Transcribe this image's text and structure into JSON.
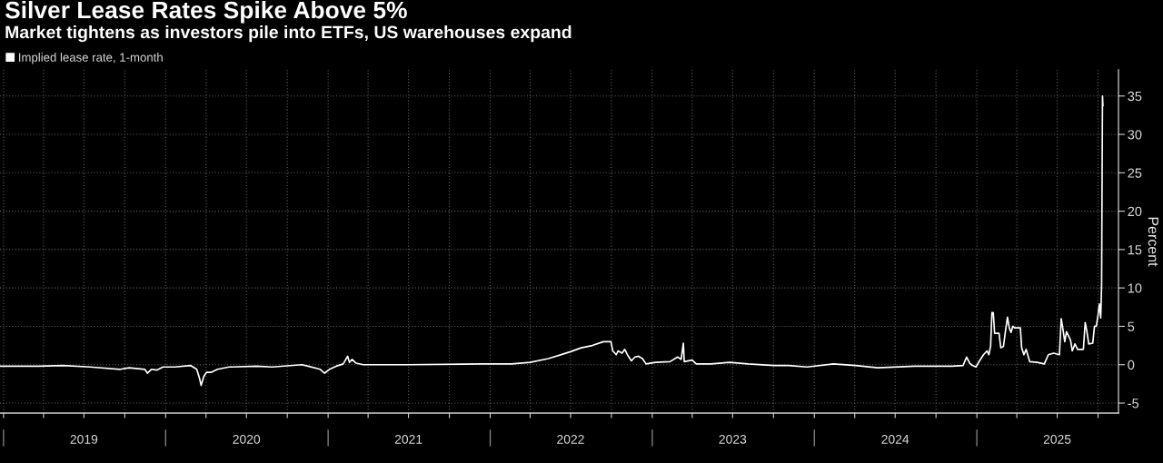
{
  "chart_data": {
    "type": "line",
    "title": "Silver Lease Rates Spike Above 5%",
    "subtitle": "Market tightens as investors pile into ETFs, US warehouses expand",
    "ylabel": "Percent",
    "x": [
      "2018-12-24",
      "2019-03-21",
      "2019-05-15",
      "2019-07-15",
      "2019-09-21",
      "2019-10-11",
      "2019-11-15",
      "2019-11-21",
      "2019-11-30",
      "2019-12-12",
      "2019-12-26",
      "2020-01-22",
      "2020-02-26",
      "2020-03-11",
      "2020-03-17",
      "2020-03-21",
      "2020-03-27",
      "2020-04-02",
      "2020-04-12",
      "2020-04-27",
      "2020-05-23",
      "2020-07-24",
      "2020-08-28",
      "2020-11-03",
      "2020-11-17",
      "2020-12-14",
      "2020-12-24",
      "2021-01-04",
      "2021-01-19",
      "2021-02-04",
      "2021-02-14",
      "2021-02-18",
      "2021-02-24",
      "2021-03-05",
      "2021-03-21",
      "2021-05-01",
      "2021-06-29",
      "2021-12-13",
      "2022-02-18",
      "2022-04-01",
      "2022-05-12",
      "2022-06-15",
      "2022-07-01",
      "2022-07-25",
      "2022-08-19",
      "2022-09-13",
      "2022-09-30",
      "2022-10-04",
      "2022-10-12",
      "2022-10-16",
      "2022-10-25",
      "2022-10-31",
      "2022-11-06",
      "2022-11-15",
      "2022-11-23",
      "2022-12-01",
      "2022-12-10",
      "2022-12-18",
      "2023-01-08",
      "2023-02-10",
      "2023-02-27",
      "2023-03-07",
      "2023-03-12",
      "2023-03-14",
      "2023-04-01",
      "2023-04-10",
      "2023-05-13",
      "2023-06-24",
      "2023-08-05",
      "2023-10-02",
      "2023-11-04",
      "2023-12-16",
      "2024-02-13",
      "2024-04-03",
      "2024-05-23",
      "2024-08-14",
      "2024-11-06",
      "2024-12-01",
      "2024-12-09",
      "2024-12-16",
      "2024-12-22",
      "2024-12-30",
      "2025-01-07",
      "2025-01-16",
      "2025-01-24",
      "2025-01-28",
      "2025-02-01",
      "2025-02-04",
      "2025-02-07",
      "2025-02-10",
      "2025-02-20",
      "2025-02-24",
      "2025-03-02",
      "2025-03-07",
      "2025-03-11",
      "2025-03-15",
      "2025-03-19",
      "2025-03-23",
      "2025-03-27",
      "2025-04-09",
      "2025-04-12",
      "2025-04-17",
      "2025-04-22",
      "2025-04-30",
      "2025-05-17",
      "2025-06-02",
      "2025-06-11",
      "2025-06-23",
      "2025-07-06",
      "2025-07-10",
      "2025-07-14",
      "2025-07-18",
      "2025-07-22",
      "2025-07-31",
      "2025-08-04",
      "2025-08-10",
      "2025-08-16",
      "2025-08-29",
      "2025-09-02",
      "2025-09-06",
      "2025-09-10",
      "2025-09-19",
      "2025-09-23",
      "2025-09-27",
      "2025-10-01",
      "2025-10-04",
      "2025-10-07",
      "2025-10-09",
      "2025-10-11",
      "2025-10-12"
    ],
    "series": [
      {
        "name": "Implied lease rate, 1-month",
        "color": "#ffffff",
        "values": [
          -0.2,
          -0.2,
          -0.1,
          -0.3,
          -0.6,
          -0.4,
          -0.6,
          -1.1,
          -0.6,
          -0.7,
          -0.3,
          -0.3,
          -0.1,
          -0.6,
          -1.7,
          -2.7,
          -1.5,
          -1.0,
          -1.0,
          -0.6,
          -0.3,
          -0.2,
          -0.3,
          0.0,
          -0.2,
          -0.6,
          -1.1,
          -0.6,
          -0.2,
          0.1,
          1.1,
          0.3,
          0.7,
          0.2,
          0.0,
          0.0,
          0.0,
          0.1,
          0.1,
          0.3,
          0.8,
          1.4,
          1.7,
          2.2,
          2.5,
          3.0,
          3.0,
          1.8,
          1.3,
          1.8,
          1.5,
          2.0,
          1.3,
          0.5,
          1.0,
          1.1,
          0.8,
          0.1,
          0.3,
          0.4,
          1.0,
          0.7,
          2.8,
          0.4,
          0.6,
          0.1,
          0.1,
          0.3,
          0.1,
          -0.1,
          -0.1,
          -0.3,
          0.1,
          -0.1,
          -0.4,
          -0.2,
          -0.2,
          -0.1,
          1.0,
          0.2,
          -0.1,
          -0.3,
          0.5,
          1.3,
          1.8,
          1.3,
          2.4,
          6.8,
          6.8,
          4.1,
          4.1,
          2.2,
          2.4,
          4.6,
          6.2,
          4.8,
          4.2,
          5.0,
          4.8,
          4.8,
          2.2,
          1.3,
          2.0,
          0.4,
          0.3,
          0.1,
          1.3,
          1.5,
          1.3,
          6.0,
          4.6,
          3.0,
          4.3,
          3.2,
          1.8,
          2.7,
          2.0,
          2.0,
          5.5,
          4.3,
          2.7,
          2.8,
          5.0,
          5.0,
          6.5,
          7.9,
          6.1,
          10.4,
          35.0,
          33.7
        ]
      }
    ],
    "xlim": [
      "2018-12-24",
      "2025-11-16"
    ],
    "xticks": [
      {
        "value": "2019-01-01",
        "label": null
      },
      {
        "value": "2019-04-01",
        "label": null
      },
      {
        "value": "2019-07-01",
        "label": "2019"
      },
      {
        "value": "2019-10-01",
        "label": null
      },
      {
        "value": "2020-01-01",
        "label": null
      },
      {
        "value": "2020-04-01",
        "label": null
      },
      {
        "value": "2020-07-01",
        "label": "2020"
      },
      {
        "value": "2020-10-01",
        "label": null
      },
      {
        "value": "2021-01-01",
        "label": null
      },
      {
        "value": "2021-04-01",
        "label": null
      },
      {
        "value": "2021-07-01",
        "label": "2021"
      },
      {
        "value": "2021-10-01",
        "label": null
      },
      {
        "value": "2022-01-01",
        "label": null
      },
      {
        "value": "2022-04-01",
        "label": null
      },
      {
        "value": "2022-07-01",
        "label": "2022"
      },
      {
        "value": "2022-10-01",
        "label": null
      },
      {
        "value": "2023-01-01",
        "label": null
      },
      {
        "value": "2023-04-01",
        "label": null
      },
      {
        "value": "2023-07-01",
        "label": "2023"
      },
      {
        "value": "2023-10-01",
        "label": null
      },
      {
        "value": "2024-01-01",
        "label": null
      },
      {
        "value": "2024-04-01",
        "label": null
      },
      {
        "value": "2024-07-01",
        "label": "2024"
      },
      {
        "value": "2024-10-01",
        "label": null
      },
      {
        "value": "2025-01-01",
        "label": null
      },
      {
        "value": "2025-04-01",
        "label": null
      },
      {
        "value": "2025-07-01",
        "label": "2025"
      },
      {
        "value": "2025-10-01",
        "label": null
      }
    ],
    "ylim": [
      -6.3,
      38.4
    ],
    "yticks": [
      -5,
      0,
      5,
      10,
      15,
      20,
      25,
      30,
      35
    ],
    "grid": true,
    "legend": "top left",
    "line_style": "solid"
  }
}
